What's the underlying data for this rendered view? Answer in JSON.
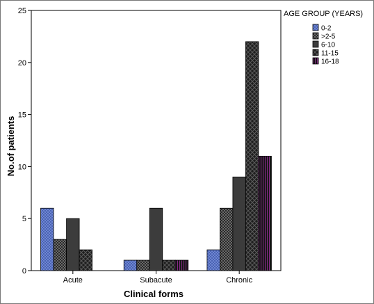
{
  "chart_data": {
    "type": "bar",
    "title": "",
    "xlabel": "Clinical forms",
    "ylabel": "No.of patients",
    "categories": [
      "Acute",
      "Subacute",
      "Chronic"
    ],
    "ylim": [
      0,
      25
    ],
    "yticks": [
      0,
      5,
      10,
      15,
      20,
      25
    ],
    "legend_title": "AGE GROUP (YEARS)",
    "legend_position": "top-right, outside plot",
    "series": [
      {
        "name": "0-2",
        "values": [
          6,
          1,
          2
        ],
        "color": "#4a63b3",
        "pattern": "fine-check"
      },
      {
        "name": ">2-5",
        "values": [
          3,
          1,
          6
        ],
        "color": "#3a3a3a",
        "pattern": "check"
      },
      {
        "name": "6-10",
        "values": [
          5,
          6,
          9
        ],
        "color": "#3c3c3c",
        "pattern": "solid"
      },
      {
        "name": "11-15",
        "values": [
          2,
          1,
          22
        ],
        "color": "#232323",
        "pattern": "diamond-grid"
      },
      {
        "name": "16-18",
        "values": [
          0,
          1,
          11
        ],
        "color": "#1b1b1b",
        "pattern": "purple-stripes"
      }
    ]
  }
}
